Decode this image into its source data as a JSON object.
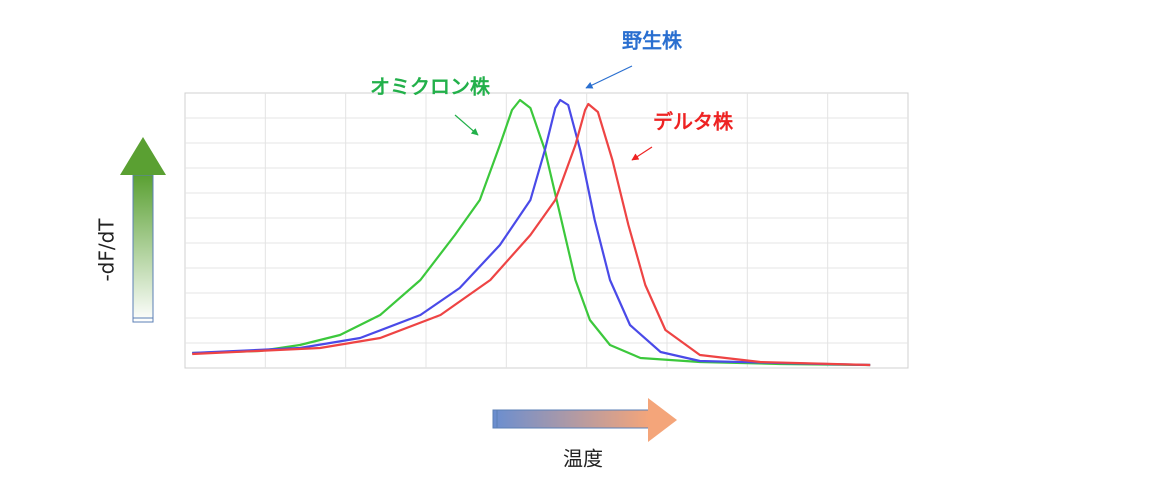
{
  "chart_data": {
    "type": "line",
    "y_label": "-dF/dT",
    "x_label": "温度",
    "xlim": [
      0,
      9
    ],
    "ylim": [
      0,
      11
    ],
    "xgrid": [
      1,
      2,
      3,
      4,
      5,
      6,
      7,
      8
    ],
    "ygrid": [
      1,
      2,
      3,
      4,
      5,
      6,
      7,
      8,
      9,
      10
    ],
    "series": [
      {
        "name": "オミクロン株",
        "color": "#3cc83c",
        "x": [
          0.09,
          0.93,
          1.43,
          1.93,
          2.43,
          2.93,
          3.36,
          3.67,
          3.92,
          4.07,
          4.17,
          4.3,
          4.48,
          4.67,
          4.86,
          5.04,
          5.29,
          5.67,
          6.41,
          7.41,
          8.53
        ],
        "values": [
          0.6,
          0.68,
          0.92,
          1.32,
          2.12,
          3.52,
          5.32,
          6.72,
          8.92,
          10.32,
          10.72,
          10.4,
          8.72,
          6.12,
          3.52,
          1.92,
          0.92,
          0.4,
          0.24,
          0.16,
          0.12
        ]
      },
      {
        "name": "野生株",
        "color": "#4a4ae8",
        "x": [
          0.09,
          1.43,
          2.18,
          2.93,
          3.42,
          3.92,
          4.3,
          4.48,
          4.61,
          4.67,
          4.77,
          4.92,
          5.1,
          5.29,
          5.54,
          5.92,
          6.41,
          7.41,
          8.53
        ],
        "values": [
          0.6,
          0.8,
          1.2,
          2.12,
          3.2,
          4.92,
          6.72,
          8.72,
          10.4,
          10.72,
          10.52,
          8.72,
          5.92,
          3.52,
          1.72,
          0.64,
          0.28,
          0.2,
          0.12
        ]
      },
      {
        "name": "デルタ株",
        "color": "#ee4444",
        "x": [
          0.09,
          1.68,
          2.43,
          3.18,
          3.8,
          4.3,
          4.61,
          4.86,
          4.98,
          5.02,
          5.14,
          5.32,
          5.52,
          5.73,
          5.98,
          6.41,
          7.16,
          8.53
        ],
        "values": [
          0.56,
          0.8,
          1.2,
          2.12,
          3.52,
          5.32,
          6.72,
          8.92,
          10.32,
          10.56,
          10.24,
          8.32,
          5.72,
          3.32,
          1.52,
          0.52,
          0.24,
          0.12
        ]
      }
    ]
  }
}
